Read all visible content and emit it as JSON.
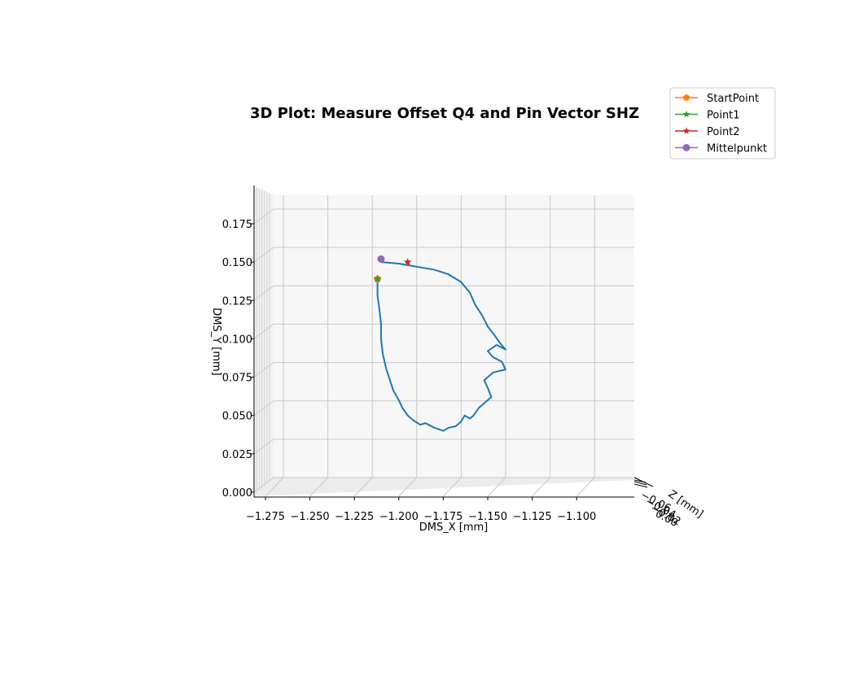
{
  "chart_data": {
    "type": "line",
    "title": "3D Plot: Measure Offset Q4 and Pin Vector SHZ",
    "xlabel": "DMS_X [mm]",
    "ylabel": "DMS_Y [mm]",
    "zlabel": "Z [mm]",
    "xlim": [
      -1.28,
      -1.08
    ],
    "ylim": [
      0.0,
      0.18
    ],
    "x_ticks": [
      "−1.275",
      "−1.250",
      "−1.225",
      "−1.200",
      "−1.175",
      "−1.150",
      "−1.125",
      "−1.100"
    ],
    "x_tick_values": [
      -1.275,
      -1.25,
      -1.225,
      -1.2,
      -1.175,
      -1.15,
      -1.125,
      -1.1
    ],
    "y_ticks": [
      "0.000",
      "0.025",
      "0.050",
      "0.075",
      "0.100",
      "0.125",
      "0.150",
      "0.175"
    ],
    "y_tick_values": [
      0.0,
      0.025,
      0.05,
      0.075,
      0.1,
      0.125,
      0.15,
      0.175
    ],
    "grid": true,
    "legend_position": "top-right",
    "series": [
      {
        "name": "",
        "color": "#1f77b4",
        "x": [
          -1.21,
          -1.2,
          -1.19,
          -1.18,
          -1.172,
          -1.165,
          -1.16,
          -1.157,
          -1.153,
          -1.15,
          -1.146,
          -1.143,
          -1.14,
          -1.145,
          -1.15,
          -1.147,
          -1.142,
          -1.14,
          -1.147,
          -1.152,
          -1.15,
          -1.148,
          -1.155,
          -1.158,
          -1.16,
          -1.163,
          -1.165,
          -1.168,
          -1.172,
          -1.175,
          -1.18,
          -1.185,
          -1.188,
          -1.192,
          -1.195,
          -1.198,
          -1.2,
          -1.203,
          -1.205,
          -1.207,
          -1.209,
          -1.21,
          -1.21,
          -1.211,
          -1.212,
          -1.212,
          -1.212
        ],
        "y": [
          0.15,
          0.149,
          0.147,
          0.145,
          0.142,
          0.137,
          0.13,
          0.122,
          0.115,
          0.108,
          0.102,
          0.097,
          0.093,
          0.096,
          0.092,
          0.088,
          0.085,
          0.08,
          0.078,
          0.073,
          0.068,
          0.062,
          0.055,
          0.05,
          0.048,
          0.05,
          0.046,
          0.043,
          0.042,
          0.04,
          0.042,
          0.045,
          0.044,
          0.047,
          0.05,
          0.055,
          0.06,
          0.066,
          0.073,
          0.08,
          0.09,
          0.1,
          0.11,
          0.12,
          0.128,
          0.134,
          0.138
        ]
      },
      {
        "name": "StartPoint",
        "color": "#ff7f0e",
        "marker": "pentagon",
        "x": [
          -1.212
        ],
        "y": [
          0.139
        ]
      },
      {
        "name": "Point1",
        "color": "#2ca02c",
        "marker": "star",
        "x": [
          -1.212
        ],
        "y": [
          0.139
        ]
      },
      {
        "name": "Point2",
        "color": "#d62728",
        "marker": "star",
        "x": [
          -1.195
        ],
        "y": [
          0.15
        ]
      },
      {
        "name": "Mittelpunkt",
        "color": "#9467bd",
        "marker": "circle",
        "x": [
          -1.21
        ],
        "y": [
          0.152
        ]
      }
    ]
  }
}
